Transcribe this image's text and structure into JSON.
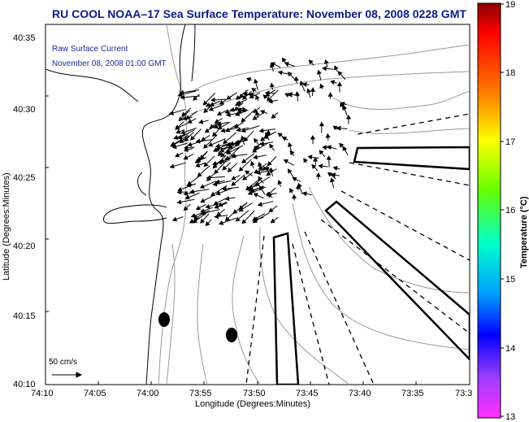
{
  "title": "RU COOL  NOAA–17  Sea Surface Temperature:  November 08, 2008 0228 GMT",
  "subtitle_line1": "Raw Surface Current",
  "subtitle_line2": "November 08, 2008 01:00 GMT",
  "scale_label": "50 cm/s",
  "x_axis_label": "Longitude (Degrees:Minutes)",
  "y_axis_label": "Latitude (Degrees:Minutes)",
  "x_ticks": [
    "74:10",
    "74:05",
    "74:00",
    "73:55",
    "73:50",
    "73:45",
    "73:40",
    "73:35",
    "73:3"
  ],
  "y_ticks": [
    "40:35",
    "40:30",
    "40:25",
    "40:20",
    "40:15",
    "40:10"
  ],
  "colorbar": {
    "label": "Temperature (°C)",
    "ticks": [
      "19",
      "18",
      "17",
      "16",
      "15",
      "14",
      "13"
    ],
    "min": 13,
    "max": 19
  },
  "colors": {
    "title": "#0a1a8c",
    "coast": "#000000",
    "contour": "#9a9a9a"
  }
}
